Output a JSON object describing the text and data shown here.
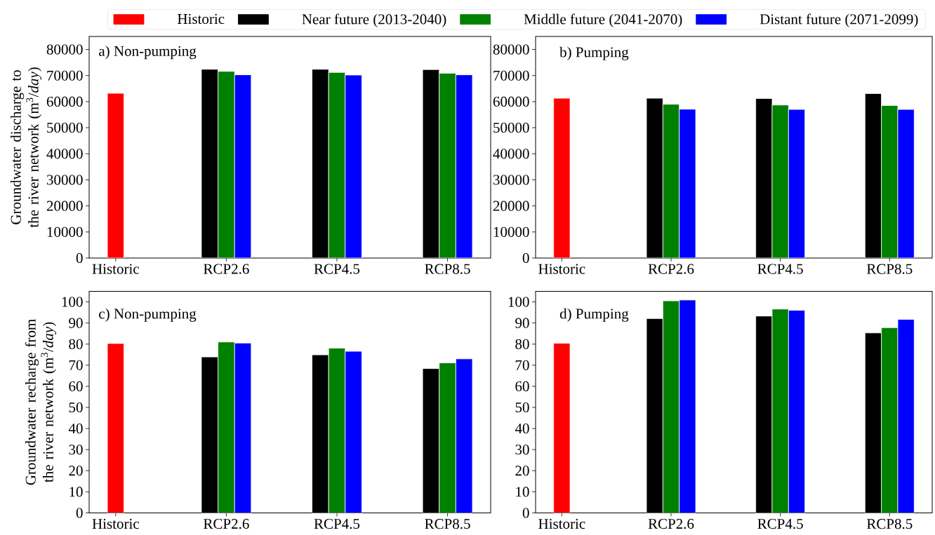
{
  "chart_data": [
    {
      "type": "bar",
      "title": "a) Non-pumping",
      "ylabel": "Groundwater discharge to the river network (m$^{3}$/*day*)",
      "categories": [
        "Historic",
        "RCP2.6",
        "RCP4.5",
        "RCP8.5"
      ],
      "series": [
        {
          "name": "Historic",
          "color": "#ff0000",
          "values": [
            63200,
            null,
            null,
            null
          ]
        },
        {
          "name": "Near future (2013-2040)",
          "color": "#000000",
          "values": [
            null,
            72400,
            72400,
            72300
          ]
        },
        {
          "name": "Middle future (2041-2070)",
          "color": "#008000",
          "values": [
            null,
            71600,
            71200,
            70900
          ]
        },
        {
          "name": "Distant future (2071-2099)",
          "color": "#0000ff",
          "values": [
            null,
            70300,
            70200,
            70300
          ]
        }
      ],
      "ylim": [
        0,
        85000
      ],
      "yticks": [
        0,
        10000,
        20000,
        30000,
        40000,
        50000,
        60000,
        70000,
        80000
      ],
      "legend": "top"
    },
    {
      "type": "bar",
      "title": "b) Pumping",
      "categories": [
        "Historic",
        "RCP2.6",
        "RCP4.5",
        "RCP8.5"
      ],
      "series": [
        {
          "color": "#ff0000",
          "values": [
            61300,
            null,
            null,
            null
          ]
        },
        {
          "color": "#000000",
          "values": [
            null,
            61300,
            61200,
            63100
          ]
        },
        {
          "color": "#008000",
          "values": [
            null,
            59000,
            58700,
            58500
          ]
        },
        {
          "color": "#0000ff",
          "values": [
            null,
            57100,
            57000,
            57000
          ]
        }
      ],
      "ylim": [
        0,
        85000
      ],
      "yticks": [
        0,
        10000,
        20000,
        30000,
        40000,
        50000,
        60000,
        70000,
        80000
      ]
    },
    {
      "type": "bar",
      "title": "c) Non-pumping",
      "ylabel": "Groundwater recharge from the river network (m$^{3}$/*day*)",
      "categories": [
        "Historic",
        "RCP2.6",
        "RCP4.5",
        "RCP8.5"
      ],
      "series": [
        {
          "color": "#ff0000",
          "values": [
            80.3,
            null,
            null,
            null
          ]
        },
        {
          "color": "#000000",
          "values": [
            null,
            73.9,
            74.9,
            68.4
          ]
        },
        {
          "color": "#008000",
          "values": [
            null,
            81.0,
            78.1,
            71.1
          ]
        },
        {
          "color": "#0000ff",
          "values": [
            null,
            80.5,
            76.6,
            73.0
          ]
        }
      ],
      "ylim": [
        0,
        105
      ],
      "yticks": [
        0,
        10,
        20,
        30,
        40,
        50,
        60,
        70,
        80,
        90,
        100
      ]
    },
    {
      "type": "bar",
      "title": "d) Pumping",
      "categories": [
        "Historic",
        "RCP2.6",
        "RCP4.5",
        "RCP8.5"
      ],
      "series": [
        {
          "color": "#ff0000",
          "values": [
            80.4,
            null,
            null,
            null
          ]
        },
        {
          "color": "#000000",
          "values": [
            null,
            92.1,
            93.3,
            85.3
          ]
        },
        {
          "color": "#008000",
          "values": [
            null,
            100.5,
            96.6,
            87.8
          ]
        },
        {
          "color": "#0000ff",
          "values": [
            null,
            100.9,
            96.0,
            91.7
          ]
        }
      ],
      "ylim": [
        0,
        105
      ],
      "yticks": [
        0,
        10,
        20,
        30,
        40,
        50,
        60,
        70,
        80,
        90,
        100
      ]
    }
  ]
}
